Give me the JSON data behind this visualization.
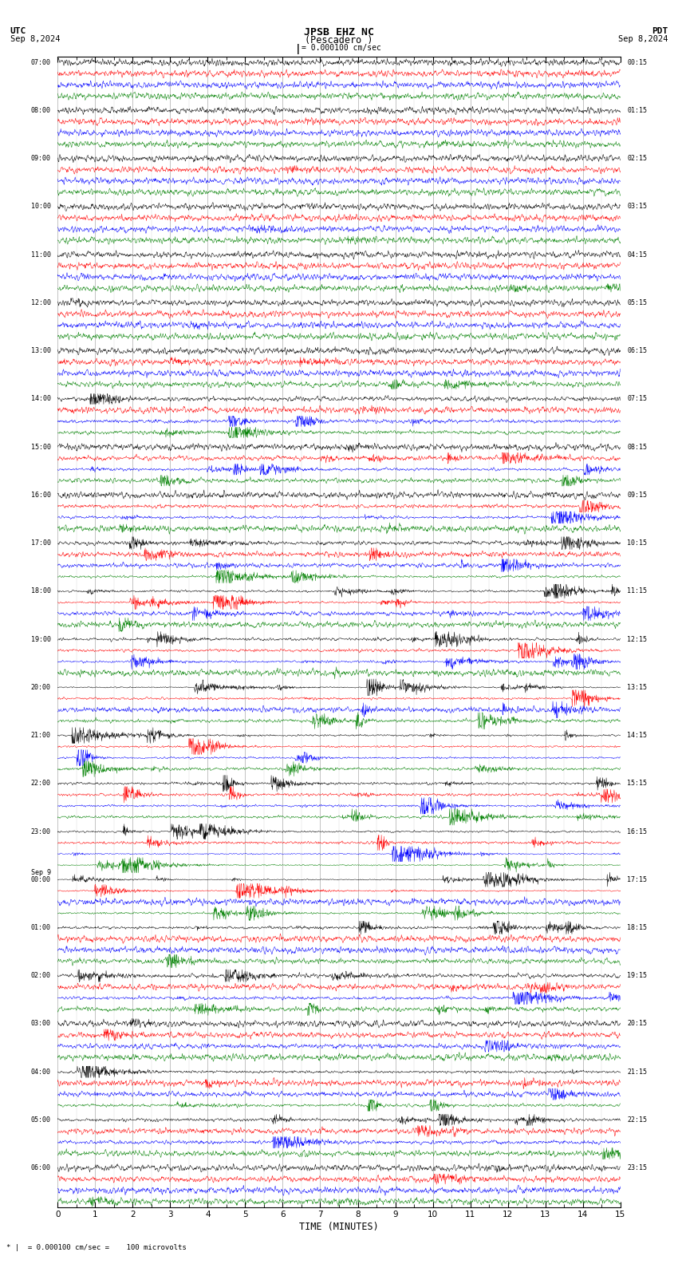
{
  "title_line1": "JPSB EHZ NC",
  "title_line2": "(Pescadero )",
  "scale_text": "= 0.000100 cm/sec",
  "utc_label": "UTC",
  "utc_date": "Sep 8,2024",
  "pdt_label": "PDT",
  "pdt_date": "Sep 8,2024",
  "xlabel": "TIME (MINUTES)",
  "bottom_note": "= 0.000100 cm/sec =    100 microvolts",
  "xticks": [
    0,
    1,
    2,
    3,
    4,
    5,
    6,
    7,
    8,
    9,
    10,
    11,
    12,
    13,
    14,
    15
  ],
  "colors": [
    "black",
    "red",
    "blue",
    "green"
  ],
  "n_rows": 24,
  "traces_per_row": 4,
  "bg_color": "white",
  "grid_color": "#888888",
  "utc_times": [
    "07:00",
    "08:00",
    "09:00",
    "10:00",
    "11:00",
    "12:00",
    "13:00",
    "14:00",
    "15:00",
    "16:00",
    "17:00",
    "18:00",
    "19:00",
    "20:00",
    "21:00",
    "22:00",
    "23:00",
    "00:00",
    "01:00",
    "02:00",
    "03:00",
    "04:00",
    "05:00",
    "06:00"
  ],
  "pdt_times": [
    "00:15",
    "01:15",
    "02:15",
    "03:15",
    "04:15",
    "05:15",
    "06:15",
    "07:15",
    "08:15",
    "09:15",
    "10:15",
    "11:15",
    "12:15",
    "13:15",
    "14:15",
    "15:15",
    "16:15",
    "17:15",
    "18:15",
    "19:15",
    "20:15",
    "21:15",
    "22:15",
    "23:15"
  ],
  "sep9_row": 17,
  "activity": [
    0.15,
    0.15,
    0.15,
    0.15,
    0.25,
    0.25,
    0.4,
    0.6,
    0.7,
    0.9,
    1.1,
    1.4,
    1.7,
    2.0,
    1.8,
    1.9,
    1.7,
    1.5,
    1.2,
    1.0,
    0.8,
    0.8,
    0.8,
    0.6
  ]
}
